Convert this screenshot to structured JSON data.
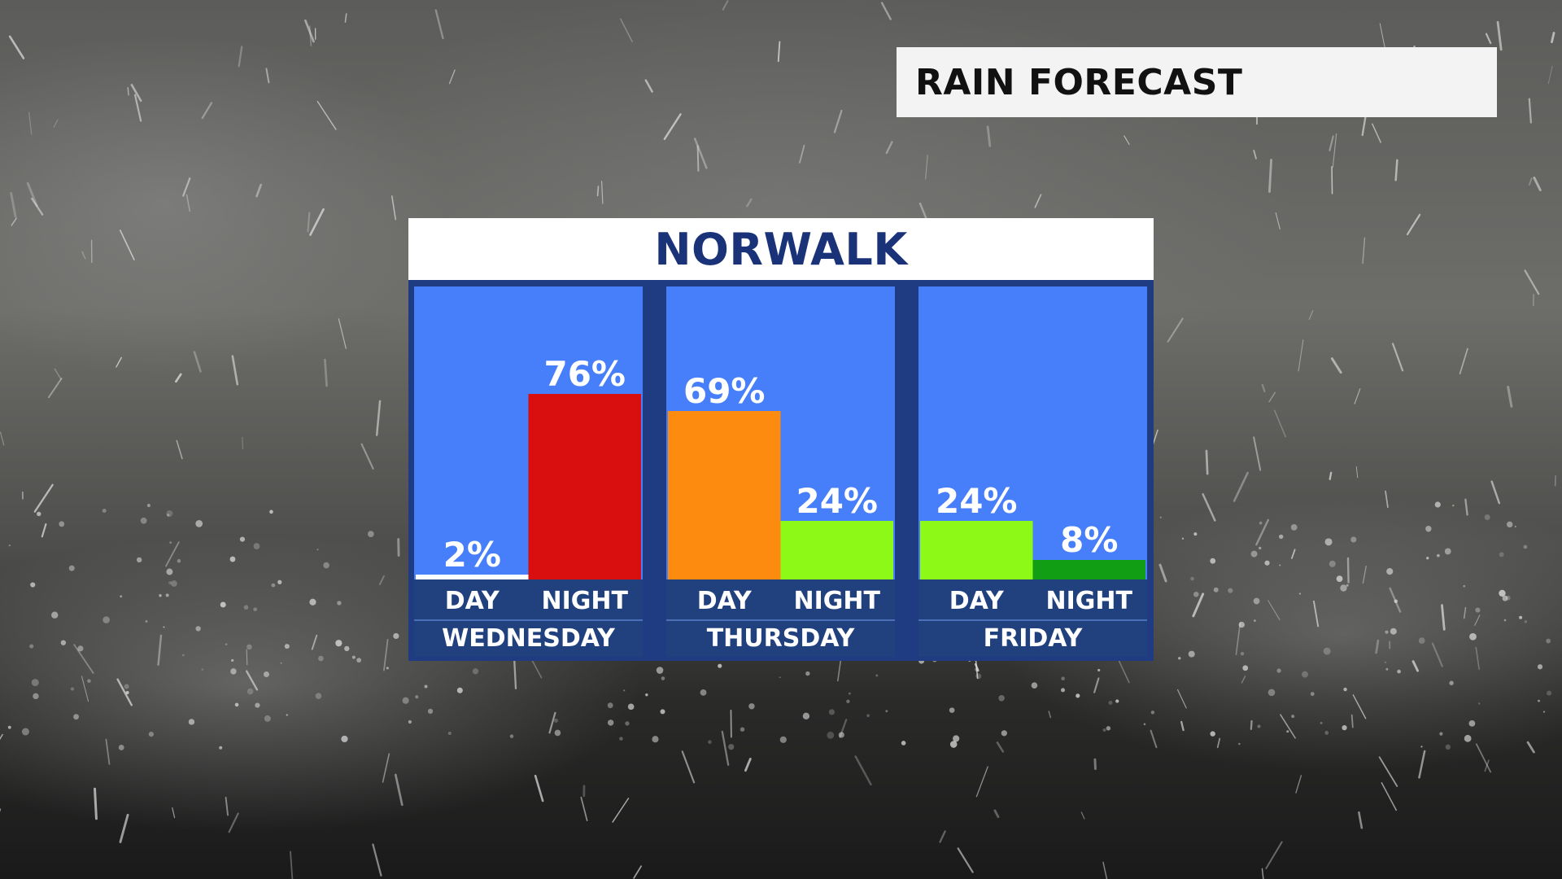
{
  "header": {
    "title": "RAIN FORECAST",
    "location": "NORWALK"
  },
  "chart_data": {
    "type": "bar",
    "title": "",
    "xlabel": "",
    "ylabel": "",
    "ylim": [
      0,
      100
    ],
    "days": [
      {
        "name": "WEDNESDAY",
        "periods": [
          {
            "label": "DAY",
            "value": 2,
            "value_label": "2%",
            "color": "#ffffff"
          },
          {
            "label": "NIGHT",
            "value": 76,
            "value_label": "76%",
            "color": "#d90e0e"
          }
        ]
      },
      {
        "name": "THURSDAY",
        "periods": [
          {
            "label": "DAY",
            "value": 69,
            "value_label": "69%",
            "color": "#fc8b0f"
          },
          {
            "label": "NIGHT",
            "value": 24,
            "value_label": "24%",
            "color": "#8cfa16"
          }
        ]
      },
      {
        "name": "FRIDAY",
        "periods": [
          {
            "label": "DAY",
            "value": 24,
            "value_label": "24%",
            "color": "#8cfa16"
          },
          {
            "label": "NIGHT",
            "value": 8,
            "value_label": "8%",
            "color": "#119e14"
          }
        ]
      }
    ],
    "grid": false,
    "legend": "none"
  },
  "colors": {
    "panel_background": "#477ef9",
    "frame": "#1f3c82",
    "label_band": "#21407e",
    "label_text": "#ffffff",
    "location_text": "#1a3278"
  }
}
